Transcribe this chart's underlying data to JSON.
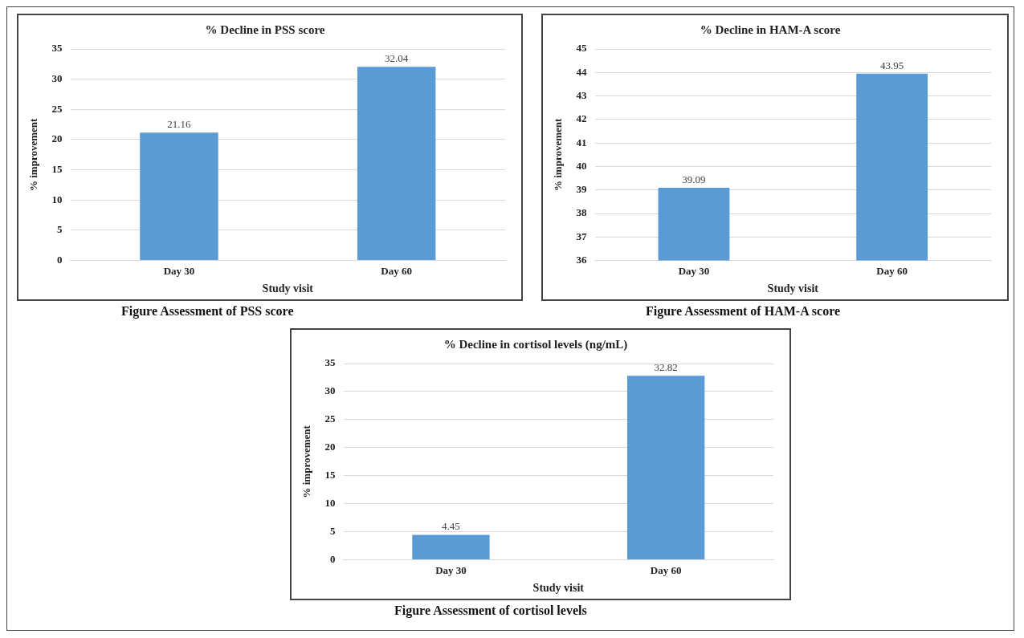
{
  "chart_data": [
    {
      "type": "bar",
      "title": "% Decline in PSS score",
      "xlabel": "Study visit",
      "ylabel": "% improvement",
      "categories": [
        "Day 30",
        "Day 60"
      ],
      "values": [
        21.16,
        32.04
      ],
      "color": "#5b9bd5",
      "ylim": [
        0,
        35
      ],
      "yticks": [
        0,
        5,
        10,
        15,
        20,
        25,
        30,
        35
      ],
      "grid": "y",
      "data_labels": true,
      "legend": false,
      "annotations": [
        "Figure Assessment of PSS score"
      ]
    },
    {
      "type": "bar",
      "title": "% Decline in HAM-A score",
      "xlabel": "Study visit",
      "ylabel": "% improvement",
      "categories": [
        "Day 30",
        "Day 60"
      ],
      "values": [
        39.09,
        43.95
      ],
      "color": "#5b9bd5",
      "ylim": [
        36,
        45
      ],
      "yticks": [
        36,
        37,
        38,
        39,
        40,
        41,
        42,
        43,
        44,
        45
      ],
      "grid": "y",
      "data_labels": true,
      "legend": false,
      "annotations": [
        "Figure Assessment of HAM-A score"
      ]
    },
    {
      "type": "bar",
      "title": "% Decline in cortisol levels (ng/mL)",
      "xlabel": "Study visit",
      "ylabel": "% improvement",
      "categories": [
        "Day 30",
        "Day 60"
      ],
      "values": [
        4.45,
        32.82
      ],
      "color": "#5b9bd5",
      "ylim": [
        0,
        35
      ],
      "yticks": [
        0,
        5,
        10,
        15,
        20,
        25,
        30,
        35
      ],
      "grid": "y",
      "data_labels": true,
      "legend": false,
      "annotations": [
        "Figure Assessment of cortisol levels"
      ]
    }
  ]
}
